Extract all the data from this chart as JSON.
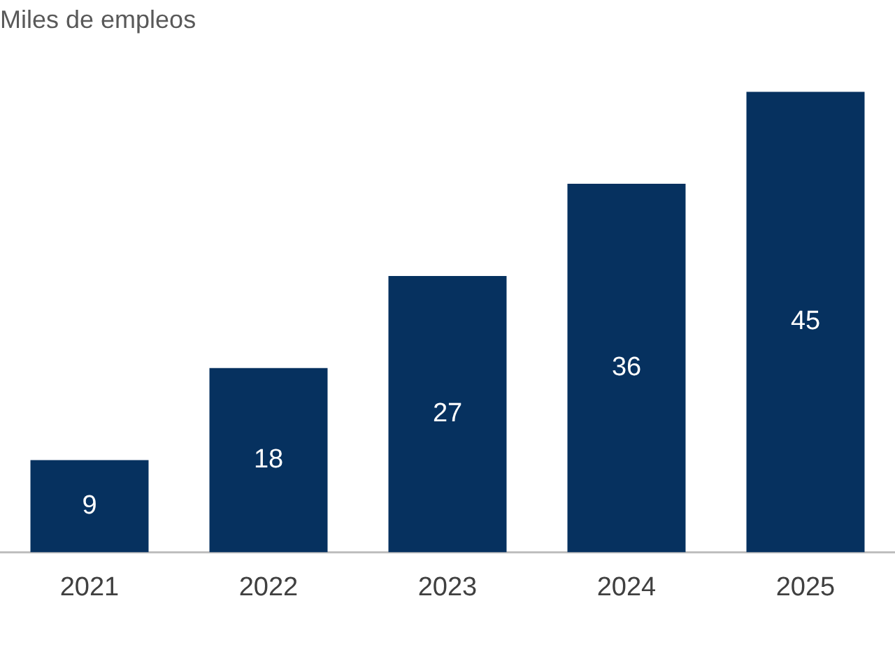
{
  "chart_data": {
    "type": "bar",
    "title": "Miles de empleos",
    "categories": [
      "2021",
      "2022",
      "2023",
      "2024",
      "2025"
    ],
    "values": [
      9,
      18,
      27,
      36,
      45
    ],
    "color": "#06315f",
    "data_labels": true,
    "grid": false,
    "legend": false
  }
}
